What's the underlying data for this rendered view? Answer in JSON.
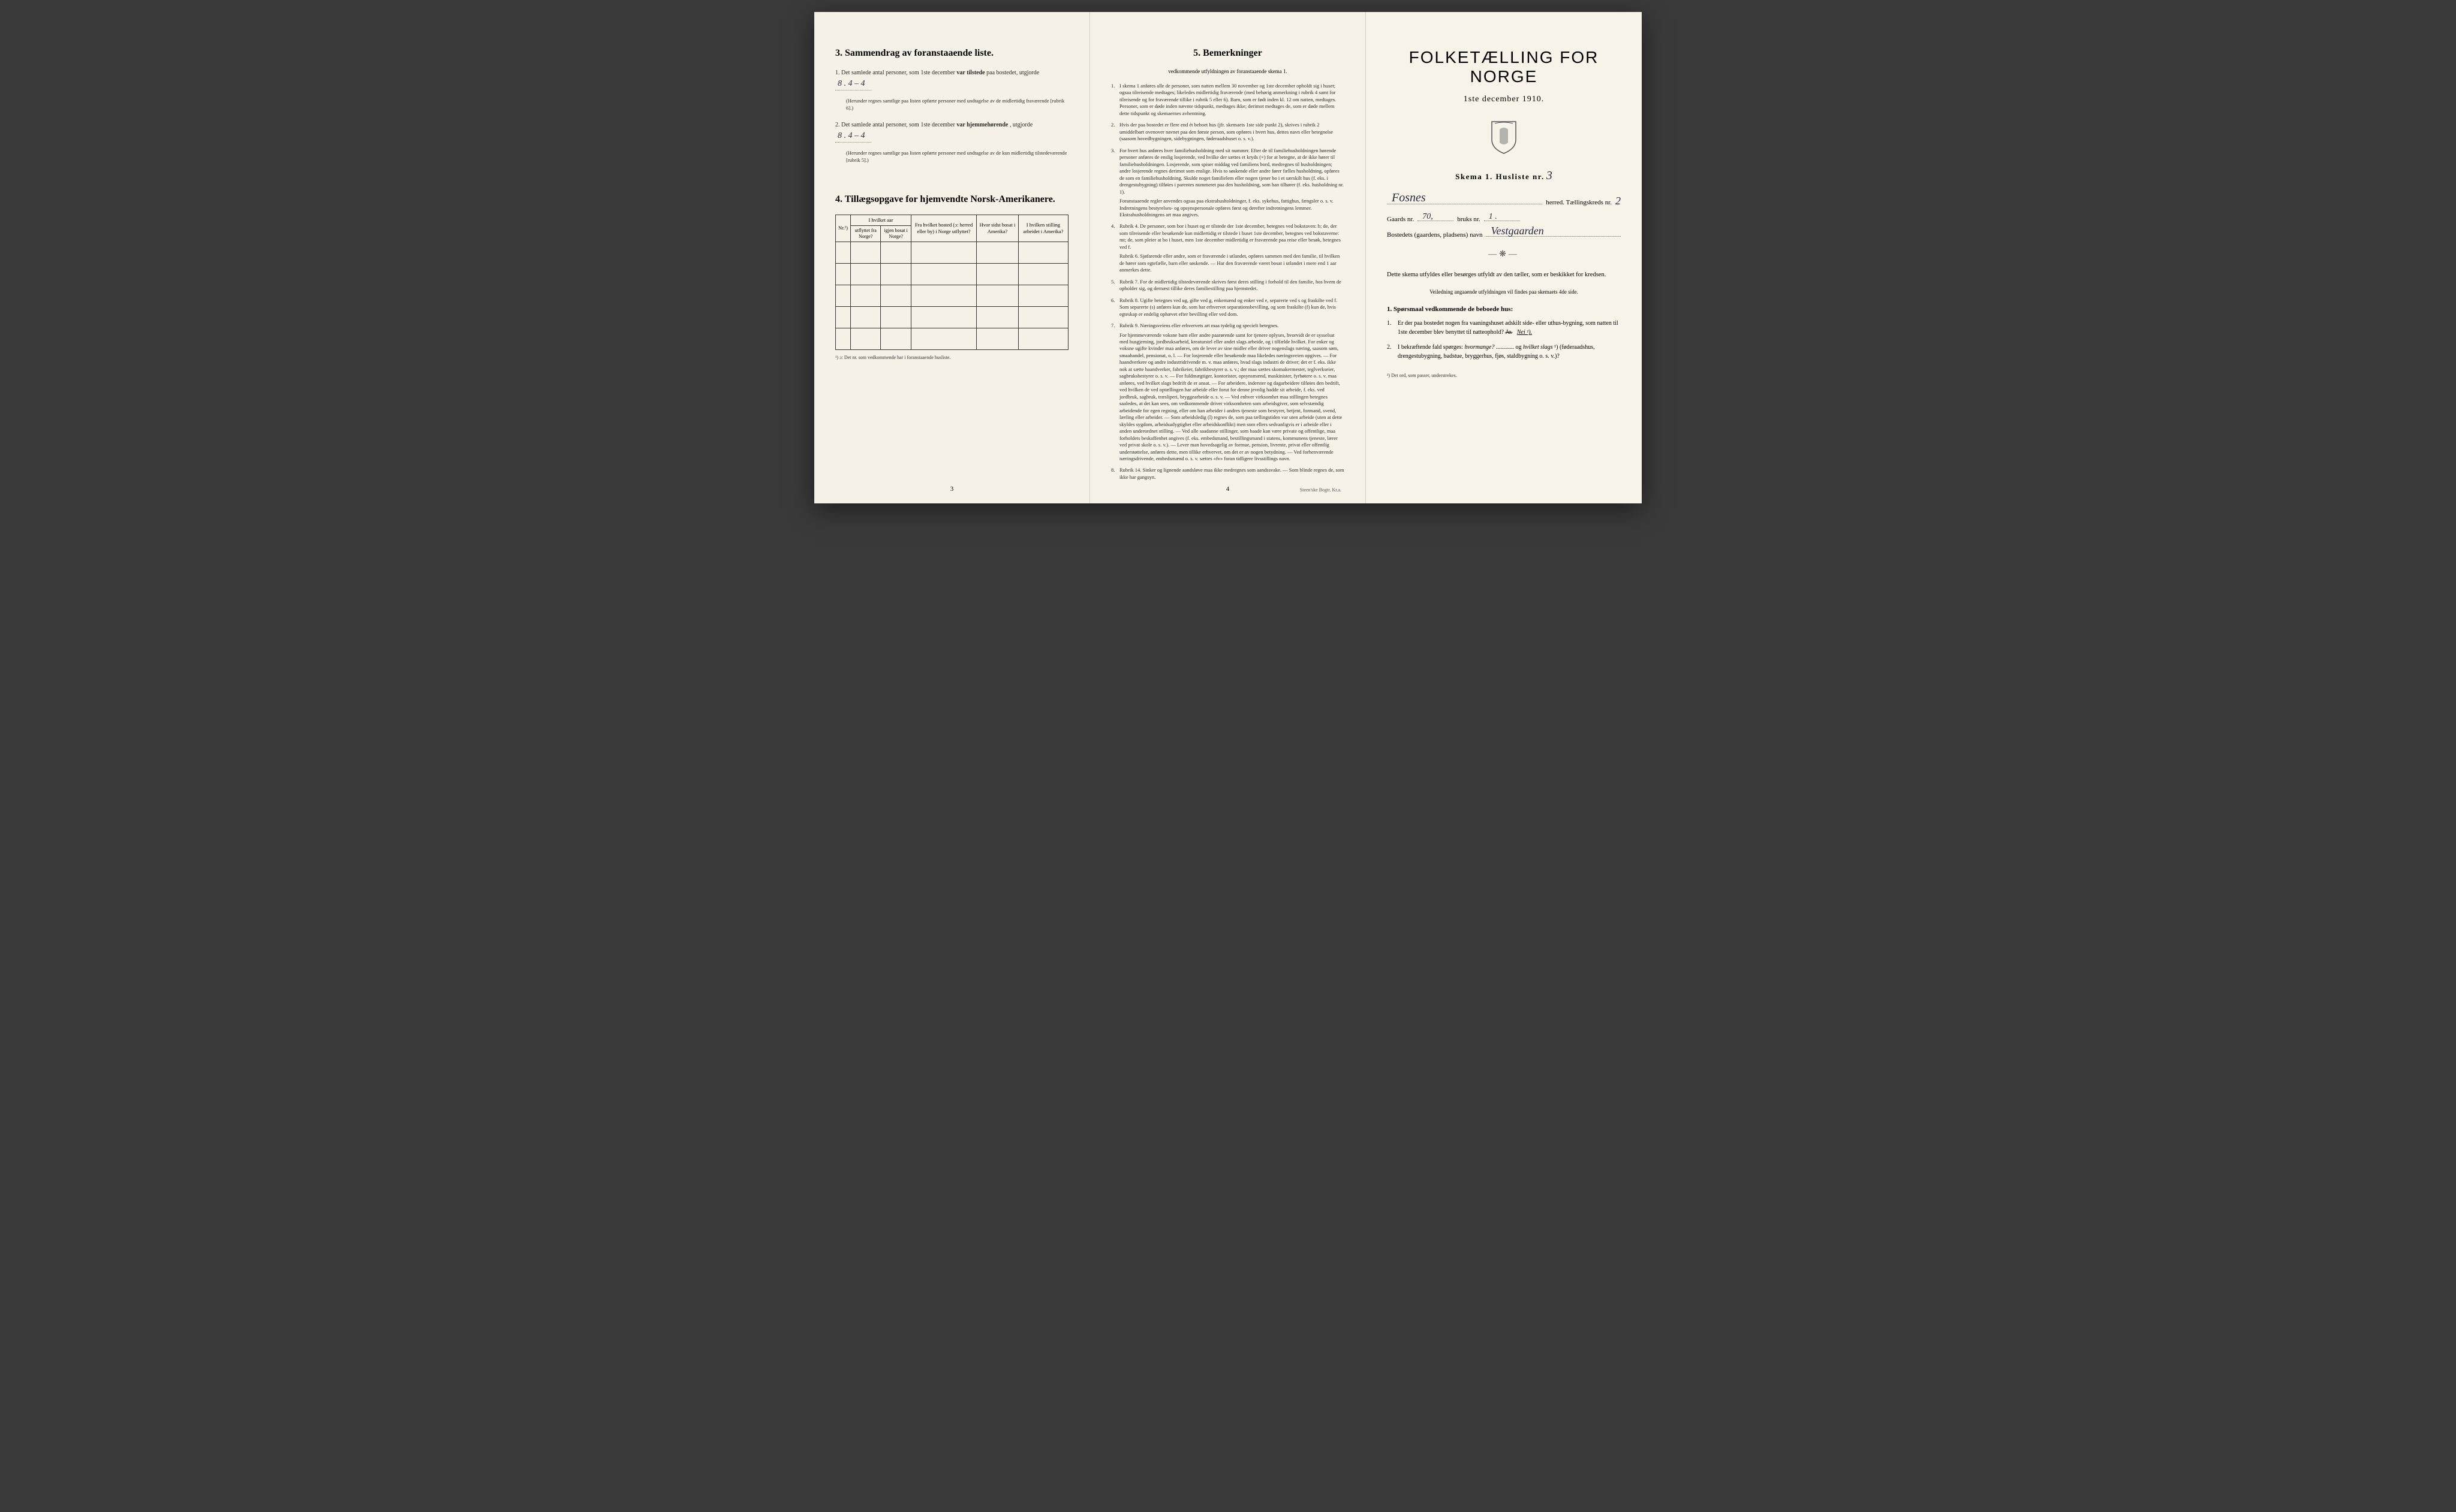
{
  "page1": {
    "section3": {
      "heading": "3.   Sammendrag av foranstaaende liste.",
      "item1_pre": "1.  Det samlede antal personer, som 1ste december ",
      "item1_bold": "var tilstede",
      "item1_post": " paa bostedet, utgjorde",
      "item1_value": "8 . 4 – 4",
      "item1_note": "(Herunder regnes samtlige paa listen opførte personer med undtagelse av de midlertidig fraværende [rubrik 6].)",
      "item2_pre": "2.  Det samlede antal personer, som 1ste december ",
      "item2_bold": "var hjemmehørende",
      "item2_post": ", utgjorde",
      "item2_value": "8 . 4 – 4",
      "item2_note": "(Herunder regnes samtlige paa listen opførte personer med undtagelse av de kun midlertidig tilstedeværende [rubrik 5].)"
    },
    "section4": {
      "heading": "4.   Tillægsopgave for hjemvendte Norsk-Amerikanere.",
      "col_nr": "Nr.¹)",
      "col_group1": "I hvilket aar",
      "col_utflyttet": "utflyttet fra Norge?",
      "col_igjen": "igjen bosat i Norge?",
      "col_bosted": "Fra hvilket bosted (ɔ: herred eller by) i Norge utflyttet?",
      "col_sidst": "Hvor sidst bosat i Amerika?",
      "col_stilling": "I hvilken stilling arbeidet i Amerika?",
      "footnote": "¹) ɔ: Det nr. som vedkommende har i foranstaaende husliste.",
      "empty_rows": 5
    },
    "page_num": "3"
  },
  "page2": {
    "heading": "5.   Bemerkninger",
    "subtitle": "vedkommende utfyldningen av foranstaaende skema 1.",
    "items": [
      {
        "n": "1.",
        "t": "I skema 1 anføres alle de personer, som natten mellem 30 november og 1ste december opholdt sig i huset; ogsaa tilreisende medtages; likeledes midlertidig fraværende (med behørig anmerkning i rubrik 4 samt for tilreisende og for fraværende tillike i rubrik 5 eller 6). Barn, som er født inden kl. 12 om natten, medtages. Personer, som er døde inden nævnte tidspunkt, medtages ikke; derimot medtages de, som er døde mellem dette tidspunkt og skemaernes avhentning."
      },
      {
        "n": "2.",
        "t": "Hvis der paa bostedet er flere end ét beboet hus (jfr. skemaets 1ste side punkt 2), skrives i rubrik 2 umiddelbart ovenover navnet paa den første person, som opføres i hvert hus, dettes navn eller betegnelse (saasom hovedbygningen, sidebygningen, føderaadshuset o. s. v.)."
      },
      {
        "n": "3.",
        "t": "For hvert hus anføres hver familiehusholdning med sit nummer. Efter de til familiehusholdningen hørende personer anføres de enslig losjerende, ved hvilke der sættes et kryds (×) for at betegne, at de ikke hører til familiehusholdningen. Losjerende, som spiser middag ved familiens bord, medregnes til husholdningen; andre losjerende regnes derimot som enslige. Hvis to søskende eller andre fører fælles husholdning, opføres de som en familiehusholdning. Skulde noget familielem eller nogen tjener bo i et særskilt hus (f. eks. i drengestubygning) tilføies i parentes nummeret paa den husholdning, som han tilhører (f. eks. husholdning nr. 1).",
        "sub": "Foranstaaende regler anvendes ogsaa paa ekstrahusholdninger, f. eks. sykehus, fattighus, fængsler o. s. v. Indretningens bestyrelses- og opsynspersonale opføres først og derefter indretningens lemmer. Ekstrahusholdningens art maa angives."
      },
      {
        "n": "4.",
        "t": "Rubrik 4. De personer, som bor i huset og er tilstede der 1ste december, betegnes ved bokstaven: b; de, der som tilreisende eller besøkende kun midlertidig er tilstede i huset 1ste december, betegnes ved bokstaverne: mt; de, som pleier at bo i huset, men 1ste december midlertidig er fraværende paa reise eller besøk, betegnes ved f.",
        "sub": "Rubrik 6. Sjøfarende eller andre, som er fraværende i utlandet, opføres sammen med den familie, til hvilken de hører som egtefælle, barn eller søskende. — Har den fraværende været bosat i utlandet i mere end 1 aar anmerkes dette."
      },
      {
        "n": "5.",
        "t": "Rubrik 7. For de midlertidig tilstedeværende skrives først deres stilling i forhold til den familie, hos hvem de opholder sig, og dernæst tillike deres familiestilling paa hjemstedet."
      },
      {
        "n": "6.",
        "t": "Rubrik 8. Ugifte betegnes ved ug, gifte ved g, enkemænd og enker ved e, separerte ved s og fraskilte ved f. Som separerte (s) anføres kun de, som har erhvervet separationsbevilling, og som fraskilte (f) kun de, hvis egteskap er endelig ophævet efter bevilling eller ved dom."
      },
      {
        "n": "7.",
        "t": "Rubrik 9. Næringsveiens eller erhvervets art maa tydelig og specielt betegnes.",
        "sub": "For hjemmeværende voksne barn eller andre paarørende samt for tjenere oplyses, hvorvidt de er sysselsat med husgjerning, jordbruksarbeid, kreaturstel eller andet slags arbeide, og i tilfælde hvilket. For enker og voksne ugifte kvinder maa anføres, om de lever av sine midler eller driver nogenslags næring, saasom søm, smaahandel, pensionat, o. l. — For losjerende eller besøkende maa likeledes næringsveien opgives. — For haandverkere og andre industridrivende m. v. maa anføres, hvad slags industri de driver; det er f. eks. ikke nok at sætte haandverker, fabrikeier, fabrikbestyrer o. s. v.; der maa sættes skomakermester, teglverkseier, sagbruksbestyrer o. s. v. — For fuldmægtiger, kontorister, opsynsmænd, maskinister, fyrbøtere o. s. v. maa anføres, ved hvilket slags bedrift de er ansat. — For arbeidere, inderster og dagarbeidere tilføies den bedrift, ved hvilken de ved optællingen har arbeide eller forut for denne jevnlig hadde sit arbeide, f. eks. ved jordbruk, sagbruk, træsliperi, bryggearbeide o. s. v. — Ved enhver virksomhet maa stillingen betegnes saaledes, at det kan sees, om vedkommende driver virksomheten som arbeidsgiver, som selvstændig arbeidende for egen regning, eller om han arbeider i andres tjeneste som bestyrer, betjent, formand, svend, lærling eller arbeider. — Som arbeidsledig (l) regnes de, som paa tællingstiden var uten arbeide (uten at dette skyldes sygdom, arbeidsudygtighet eller arbeidskonflikt) men som ellers sedvanligvis er i arbeide eller i anden underordnet stilling. — Ved alle saadanne stillinger, som baade kan være private og offentlige, maa forholdets beskaffenhet angives (f. eks. embedsmand, bestillingsmand i statens, kommunens tjeneste, lærer ved privat skole o. s. v.). — Lever man hovedsagelig av formue, pension, livrente, privat eller offentlig understøttelse, anføres dette, men tillike erhvervet, om det er av nogen betydning. — Ved forhenværende næringsdrivende, embedsmænd o. s. v. sættes «fv» foran tidligere livsstillings navn."
      },
      {
        "n": "8.",
        "t": "Rubrik 14. Sinker og lignende aandsløve maa ikke medregnes som aandssvake. — Som blinde regnes de, som ikke har gangsyn."
      }
    ],
    "page_num": "4",
    "printer": "Steen'ske Bogtr. Kr.a."
  },
  "page3": {
    "title": "FOLKETÆLLING FOR NORGE",
    "date": "1ste december 1910.",
    "skema_label": "Skema 1.  Husliste nr.",
    "husliste_nr": "3",
    "herred_value": "Fosnes",
    "herred_label": "herred.  Tællingskreds nr.",
    "kreds_nr": "2",
    "gaards_label": "Gaards nr.",
    "gaards_nr": "70,",
    "bruks_label": "bruks nr.",
    "bruks_nr": "1 .",
    "bosted_label": "Bostedets (gaardens, pladsens) navn",
    "bosted_value": "Vestgaarden",
    "instr1": "Dette skema utfyldes eller besørges utfyldt av den tæller, som er beskikket for kredsen.",
    "instr2": "Veiledning angaaende utfyldningen vil findes paa skemaets 4de side.",
    "q_heading": "1. Spørsmaal vedkommende de beboede hus:",
    "q1_num": "1.",
    "q1_text": "Er der paa bostedet nogen fra vaaningshuset adskilt side- eller uthus-bygning, som natten til 1ste december blev benyttet til natteophold?   ",
    "q1_ja": "Ja.",
    "q1_nei": "Nei ¹).",
    "q2_num": "2.",
    "q2_text_pre": "I bekræftende fald spørges: ",
    "q2_em1": "hvormange?",
    "q2_mid": " ............ og ",
    "q2_em2": "hvilket slags",
    "q2_sup": "¹)",
    "q2_text_post": " (føderaadshus, drengestubygning, badstue, bryggerhus, fjøs, staldbygning o. s. v.)?",
    "footnote": "¹) Det ord, som passer, understrekes."
  },
  "colors": {
    "paper": "#f5f1e6",
    "ink": "#2a2a2a",
    "handwriting": "#2a2a40",
    "border": "#333333"
  }
}
